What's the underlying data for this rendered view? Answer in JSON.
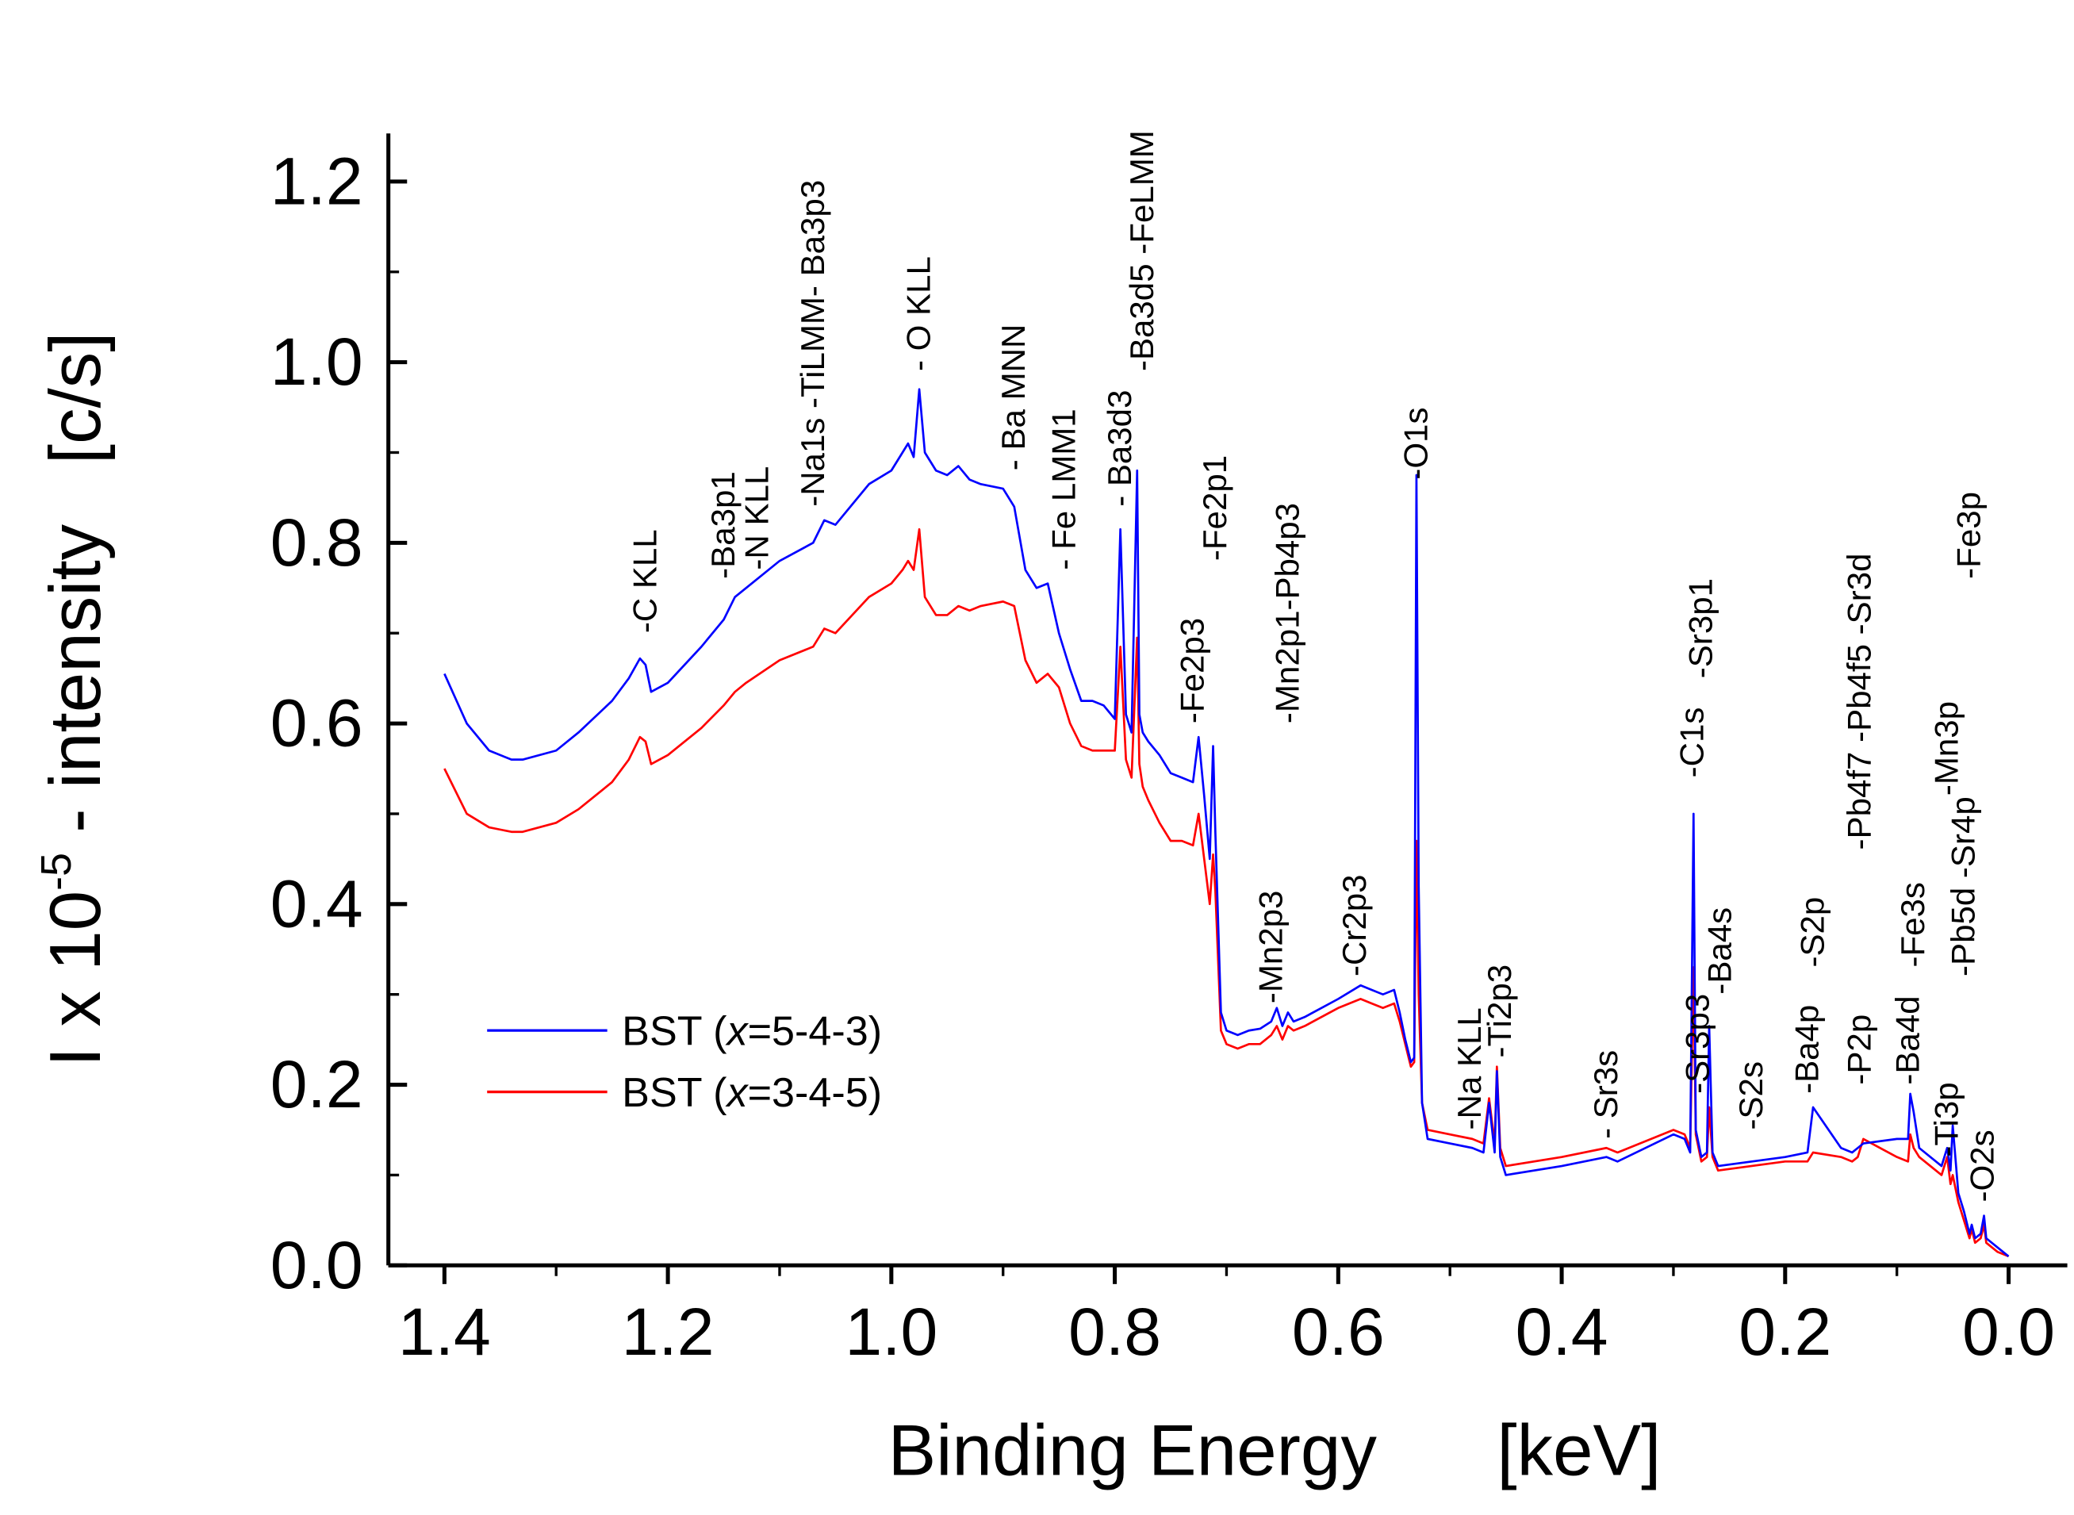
{
  "chart_data": {
    "type": "line",
    "xlabel": "Binding Energy      [keV]",
    "ylabel_main": "I x 10",
    "ylabel_exp": "-5",
    "ylabel_rest": " - intensity   [c/s]",
    "xlim": [
      1.4,
      0.0
    ],
    "ylim": [
      0.0,
      1.2
    ],
    "x_reversed": true,
    "x_ticks": [
      1.4,
      1.2,
      1.0,
      0.8,
      0.6,
      0.4,
      0.2,
      0.0
    ],
    "x_tick_labels": [
      "1.4",
      "1.2",
      "1.0",
      "0.8",
      "0.6",
      "0.4",
      "0.2",
      "0.0"
    ],
    "y_ticks": [
      0.0,
      0.2,
      0.4,
      0.6,
      0.8,
      1.0,
      1.2
    ],
    "y_tick_labels": [
      "0.0",
      "0.2",
      "0.4",
      "0.6",
      "0.8",
      "1.0",
      "1.2"
    ],
    "legend_position": "lower-left",
    "grid": false,
    "series": [
      {
        "name_prefix": "BST (",
        "name_var": "x",
        "name_suffix": "=5-4-3)",
        "color": "#0000ff",
        "x": [
          1.4,
          1.38,
          1.36,
          1.34,
          1.33,
          1.3,
          1.28,
          1.25,
          1.235,
          1.225,
          1.22,
          1.215,
          1.2,
          1.17,
          1.15,
          1.14,
          1.13,
          1.1,
          1.07,
          1.06,
          1.05,
          1.02,
          1.0,
          0.99,
          0.985,
          0.98,
          0.975,
          0.97,
          0.96,
          0.95,
          0.94,
          0.93,
          0.92,
          0.9,
          0.89,
          0.88,
          0.87,
          0.86,
          0.85,
          0.84,
          0.83,
          0.82,
          0.81,
          0.8,
          0.795,
          0.79,
          0.785,
          0.78,
          0.778,
          0.775,
          0.77,
          0.76,
          0.75,
          0.74,
          0.73,
          0.725,
          0.72,
          0.715,
          0.712,
          0.71,
          0.705,
          0.7,
          0.69,
          0.68,
          0.67,
          0.66,
          0.655,
          0.65,
          0.645,
          0.64,
          0.63,
          0.6,
          0.58,
          0.57,
          0.56,
          0.55,
          0.545,
          0.54,
          0.535,
          0.532,
          0.53,
          0.528,
          0.525,
          0.52,
          0.5,
          0.48,
          0.47,
          0.465,
          0.46,
          0.458,
          0.455,
          0.45,
          0.4,
          0.36,
          0.35,
          0.3,
          0.29,
          0.285,
          0.282,
          0.28,
          0.275,
          0.27,
          0.268,
          0.265,
          0.26,
          0.2,
          0.18,
          0.175,
          0.15,
          0.14,
          0.135,
          0.13,
          0.1,
          0.09,
          0.088,
          0.085,
          0.08,
          0.06,
          0.055,
          0.052,
          0.05,
          0.045,
          0.04,
          0.035,
          0.033,
          0.03,
          0.025,
          0.022,
          0.02,
          0.01,
          0.0
        ],
        "values": [
          0.655,
          0.6,
          0.57,
          0.56,
          0.56,
          0.57,
          0.59,
          0.625,
          0.65,
          0.672,
          0.665,
          0.635,
          0.645,
          0.685,
          0.715,
          0.74,
          0.75,
          0.78,
          0.8,
          0.825,
          0.82,
          0.865,
          0.88,
          0.9,
          0.91,
          0.895,
          0.97,
          0.9,
          0.88,
          0.875,
          0.885,
          0.87,
          0.865,
          0.86,
          0.84,
          0.77,
          0.75,
          0.755,
          0.7,
          0.66,
          0.625,
          0.625,
          0.62,
          0.605,
          0.815,
          0.61,
          0.59,
          0.88,
          0.61,
          0.59,
          0.58,
          0.565,
          0.545,
          0.54,
          0.535,
          0.585,
          0.52,
          0.45,
          0.575,
          0.48,
          0.28,
          0.26,
          0.255,
          0.26,
          0.262,
          0.27,
          0.285,
          0.265,
          0.28,
          0.27,
          0.275,
          0.295,
          0.31,
          0.305,
          0.3,
          0.305,
          0.28,
          0.25,
          0.225,
          0.23,
          0.875,
          0.42,
          0.18,
          0.14,
          0.135,
          0.13,
          0.125,
          0.18,
          0.125,
          0.215,
          0.12,
          0.1,
          0.11,
          0.12,
          0.115,
          0.145,
          0.14,
          0.125,
          0.5,
          0.15,
          0.12,
          0.125,
          0.265,
          0.125,
          0.11,
          0.12,
          0.125,
          0.175,
          0.13,
          0.125,
          0.13,
          0.135,
          0.14,
          0.14,
          0.19,
          0.17,
          0.13,
          0.11,
          0.13,
          0.105,
          0.155,
          0.08,
          0.06,
          0.035,
          0.045,
          0.03,
          0.035,
          0.055,
          0.03,
          0.02,
          0.01
        ]
      },
      {
        "name_prefix": "BST (",
        "name_var": "x",
        "name_suffix": "=3-4-5)",
        "color": "#ff0000",
        "x": [
          1.4,
          1.38,
          1.36,
          1.34,
          1.33,
          1.3,
          1.28,
          1.25,
          1.235,
          1.225,
          1.22,
          1.215,
          1.2,
          1.17,
          1.15,
          1.14,
          1.13,
          1.1,
          1.07,
          1.06,
          1.05,
          1.02,
          1.0,
          0.99,
          0.985,
          0.98,
          0.975,
          0.97,
          0.96,
          0.95,
          0.94,
          0.93,
          0.92,
          0.9,
          0.89,
          0.88,
          0.87,
          0.86,
          0.85,
          0.84,
          0.83,
          0.82,
          0.81,
          0.8,
          0.795,
          0.79,
          0.785,
          0.78,
          0.778,
          0.775,
          0.77,
          0.76,
          0.75,
          0.74,
          0.73,
          0.725,
          0.72,
          0.715,
          0.712,
          0.71,
          0.705,
          0.7,
          0.69,
          0.68,
          0.67,
          0.66,
          0.655,
          0.65,
          0.645,
          0.64,
          0.63,
          0.6,
          0.58,
          0.57,
          0.56,
          0.55,
          0.545,
          0.54,
          0.535,
          0.532,
          0.53,
          0.528,
          0.525,
          0.52,
          0.5,
          0.48,
          0.47,
          0.465,
          0.46,
          0.458,
          0.455,
          0.45,
          0.4,
          0.36,
          0.35,
          0.3,
          0.29,
          0.285,
          0.282,
          0.28,
          0.275,
          0.27,
          0.268,
          0.265,
          0.26,
          0.2,
          0.18,
          0.175,
          0.15,
          0.14,
          0.135,
          0.13,
          0.1,
          0.09,
          0.088,
          0.085,
          0.08,
          0.06,
          0.055,
          0.052,
          0.05,
          0.045,
          0.04,
          0.035,
          0.033,
          0.03,
          0.025,
          0.022,
          0.02,
          0.01,
          0.0
        ],
        "values": [
          0.55,
          0.5,
          0.485,
          0.48,
          0.48,
          0.49,
          0.505,
          0.535,
          0.56,
          0.585,
          0.58,
          0.555,
          0.565,
          0.595,
          0.62,
          0.635,
          0.645,
          0.67,
          0.685,
          0.705,
          0.7,
          0.74,
          0.755,
          0.77,
          0.78,
          0.77,
          0.815,
          0.74,
          0.72,
          0.72,
          0.73,
          0.725,
          0.73,
          0.735,
          0.73,
          0.67,
          0.645,
          0.655,
          0.64,
          0.6,
          0.575,
          0.57,
          0.57,
          0.57,
          0.685,
          0.56,
          0.54,
          0.695,
          0.555,
          0.53,
          0.515,
          0.49,
          0.47,
          0.47,
          0.465,
          0.5,
          0.45,
          0.4,
          0.455,
          0.415,
          0.26,
          0.245,
          0.24,
          0.245,
          0.245,
          0.255,
          0.265,
          0.25,
          0.265,
          0.26,
          0.265,
          0.285,
          0.295,
          0.29,
          0.285,
          0.29,
          0.27,
          0.245,
          0.22,
          0.225,
          0.47,
          0.3,
          0.18,
          0.15,
          0.145,
          0.14,
          0.135,
          0.185,
          0.135,
          0.22,
          0.13,
          0.11,
          0.12,
          0.13,
          0.125,
          0.15,
          0.145,
          0.13,
          0.33,
          0.145,
          0.115,
          0.12,
          0.175,
          0.12,
          0.105,
          0.115,
          0.115,
          0.125,
          0.12,
          0.115,
          0.12,
          0.14,
          0.12,
          0.115,
          0.145,
          0.13,
          0.12,
          0.1,
          0.12,
          0.09,
          0.1,
          0.07,
          0.05,
          0.03,
          0.04,
          0.025,
          0.03,
          0.045,
          0.025,
          0.015,
          0.01
        ]
      }
    ],
    "annotations": [
      {
        "text": "-C KLL",
        "x": 1.22,
        "y": 0.7
      },
      {
        "text": "-Ba3p1",
        "x": 1.15,
        "y": 0.76
      },
      {
        "text": "-N KLL",
        "x": 1.12,
        "y": 0.77
      },
      {
        "text": "-Na1s -TiLMM- Ba3p3",
        "x": 1.07,
        "y": 0.84
      },
      {
        "text": "- O KLL",
        "x": 0.975,
        "y": 0.99
      },
      {
        "text": "- Ba MNN",
        "x": 0.89,
        "y": 0.88
      },
      {
        "text": "- Fe LMM1",
        "x": 0.845,
        "y": 0.77
      },
      {
        "text": "- Ba3d3",
        "x": 0.795,
        "y": 0.84
      },
      {
        "text": "-Ba3d5 -FeLMM",
        "x": 0.775,
        "y": 0.99
      },
      {
        "text": "-Fe2p1",
        "x": 0.71,
        "y": 0.78
      },
      {
        "text": "-Fe2p3",
        "x": 0.73,
        "y": 0.6
      },
      {
        "text": "-Mn2p1-Pb4p3",
        "x": 0.645,
        "y": 0.6
      },
      {
        "text": "-Mn2p3",
        "x": 0.66,
        "y": 0.29
      },
      {
        "text": "-Cr2p3",
        "x": 0.585,
        "y": 0.32
      },
      {
        "text": "-O1s",
        "x": 0.53,
        "y": 0.87
      },
      {
        "text": "-Na KLL",
        "x": 0.482,
        "y": 0.15
      },
      {
        "text": "-Ti2p3",
        "x": 0.455,
        "y": 0.23
      },
      {
        "text": "- Sr3s",
        "x": 0.36,
        "y": 0.14
      },
      {
        "text": "-C1s",
        "x": 0.283,
        "y": 0.54
      },
      {
        "text": "-Sr3p1",
        "x": 0.275,
        "y": 0.65
      },
      {
        "text": "-Sr3p3",
        "x": 0.278,
        "y": 0.19
      },
      {
        "text": "-Ba4s",
        "x": 0.258,
        "y": 0.3
      },
      {
        "text": "-S2s",
        "x": 0.23,
        "y": 0.15
      },
      {
        "text": "-S2p",
        "x": 0.175,
        "y": 0.33
      },
      {
        "text": "-Ba4p",
        "x": 0.18,
        "y": 0.19
      },
      {
        "text": "-P2p",
        "x": 0.133,
        "y": 0.2
      },
      {
        "text": "-Pb4f7 -Pb4f5 -Sr3d",
        "x": 0.133,
        "y": 0.46
      },
      {
        "text": "-Ba4d",
        "x": 0.09,
        "y": 0.2
      },
      {
        "text": "-Fe3s",
        "x": 0.085,
        "y": 0.33
      },
      {
        "text": "-Ti3p",
        "x": 0.055,
        "y": 0.12
      },
      {
        "text": "-O2s",
        "x": 0.023,
        "y": 0.07
      },
      {
        "text": "-Pb5d -Sr4p",
        "x": 0.04,
        "y": 0.32
      },
      {
        "text": "-Mn3p",
        "x": 0.055,
        "y": 0.52
      },
      {
        "text": "-Fe3p",
        "x": 0.035,
        "y": 0.76
      }
    ]
  }
}
